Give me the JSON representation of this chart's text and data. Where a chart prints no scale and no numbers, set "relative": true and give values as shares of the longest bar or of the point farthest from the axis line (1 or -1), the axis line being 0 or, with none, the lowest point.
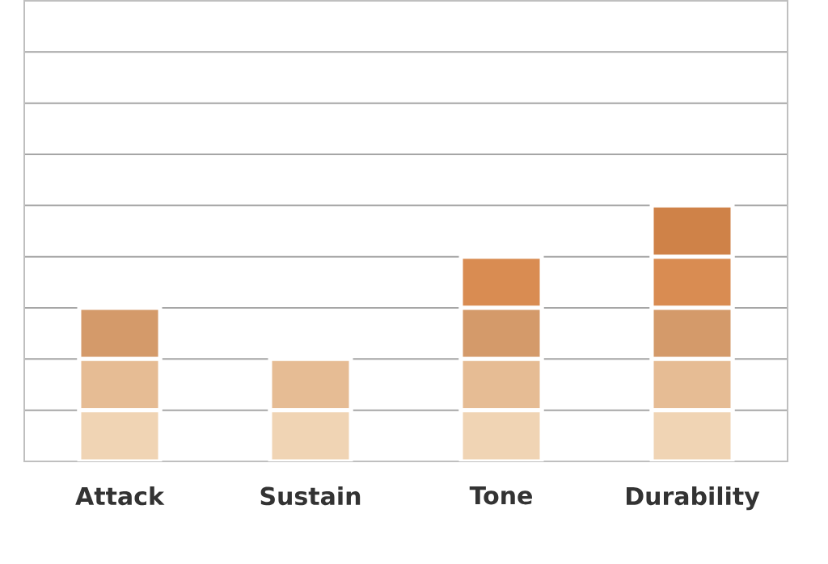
{
  "chart_data": {
    "type": "bar",
    "stacked": true,
    "relative": true,
    "grid": "y",
    "categories": [
      "Attack",
      "Sustain",
      "Tone",
      "Durability"
    ],
    "series": [
      {
        "color": "#f0d4b4",
        "values": [
          0.2,
          0.2,
          0.2,
          0.2
        ]
      },
      {
        "color": "#e6bc94",
        "values": [
          0.2,
          0.2,
          0.2,
          0.2
        ]
      },
      {
        "color": "#d49a6a",
        "values": [
          0.2,
          null,
          0.2,
          0.2
        ]
      },
      {
        "color": "#d98c52",
        "values": [
          null,
          null,
          0.2,
          0.2
        ]
      },
      {
        "color": "#cf8248",
        "values": [
          null,
          null,
          null,
          0.2
        ]
      }
    ]
  }
}
